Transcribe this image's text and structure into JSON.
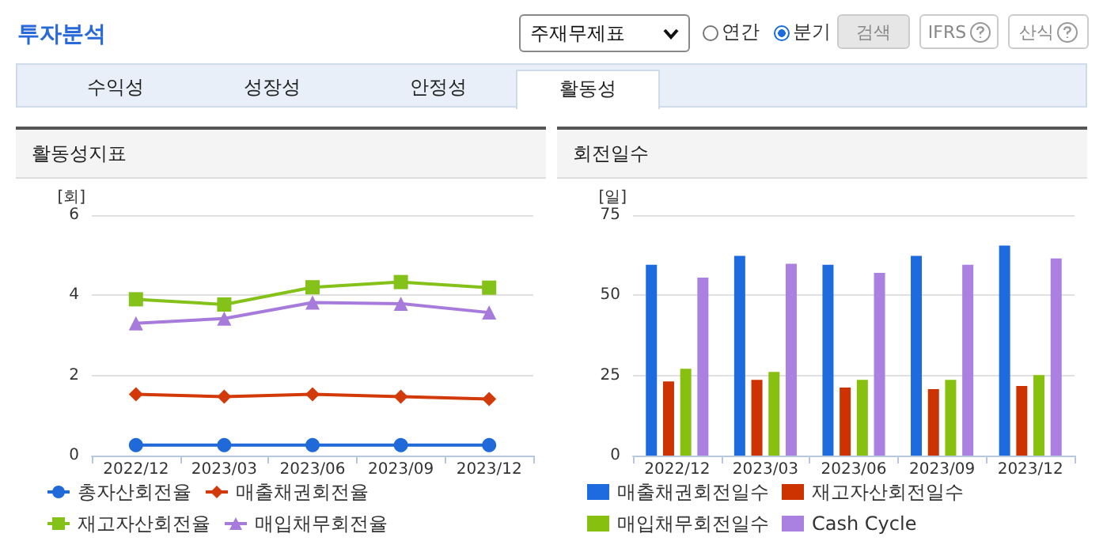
{
  "chart_data": [
    {
      "type": "other",
      "title": "투자분석",
      "annotations": [
        "주재무제표",
        "연간",
        "분기",
        "검색",
        "IFRS",
        "산식",
        "수익성",
        "성장성",
        "안정성",
        "활동성"
      ]
    },
    {
      "type": "line",
      "title": "활동성지표",
      "ylabel": "[회]",
      "categories": [
        "2022/12",
        "2023/03",
        "2023/06",
        "2023/09",
        "2023/12"
      ],
      "ylim": [
        0,
        6
      ],
      "yticks": [
        0,
        2,
        4,
        6
      ],
      "grid": "y",
      "legend": "bottom",
      "series": [
        {
          "name": "총자산회전율",
          "color": "#1f6ad8",
          "marker": "circle",
          "values": [
            0.26,
            0.26,
            0.26,
            0.26,
            0.26
          ]
        },
        {
          "name": "매출채권회전율",
          "color": "#d23a0a",
          "marker": "diamond",
          "values": [
            1.53,
            1.47,
            1.53,
            1.47,
            1.41
          ]
        },
        {
          "name": "재고자산회전율",
          "color": "#84c21a",
          "marker": "square",
          "values": [
            3.9,
            3.77,
            4.2,
            4.33,
            4.19
          ]
        },
        {
          "name": "매입채무회전율",
          "color": "#a77bdb",
          "marker": "triangle",
          "values": [
            3.3,
            3.42,
            3.82,
            3.79,
            3.57
          ]
        }
      ]
    },
    {
      "type": "bar",
      "title": "회전일수",
      "ylabel": "[일]",
      "categories": [
        "2022/12",
        "2023/03",
        "2023/06",
        "2023/09",
        "2023/12"
      ],
      "ylim": [
        0,
        75
      ],
      "yticks": [
        0,
        25,
        50,
        75
      ],
      "grid": "y",
      "legend": "bottom",
      "series": [
        {
          "name": "매출채권회전일수",
          "color": "#1e6be0",
          "values": [
            59.5,
            62.3,
            59.5,
            62.3,
            65.5
          ]
        },
        {
          "name": "재고자산회전일수",
          "color": "#cc3300",
          "values": [
            23.1,
            23.6,
            21.2,
            20.7,
            21.7
          ]
        },
        {
          "name": "매입채무회전일수",
          "color": "#88c010",
          "values": [
            27.1,
            26.1,
            23.6,
            23.6,
            25.1
          ]
        },
        {
          "name": "Cash Cycle",
          "color": "#aa80e0",
          "values": [
            55.5,
            59.8,
            57,
            59.5,
            61.5
          ]
        }
      ]
    }
  ]
}
